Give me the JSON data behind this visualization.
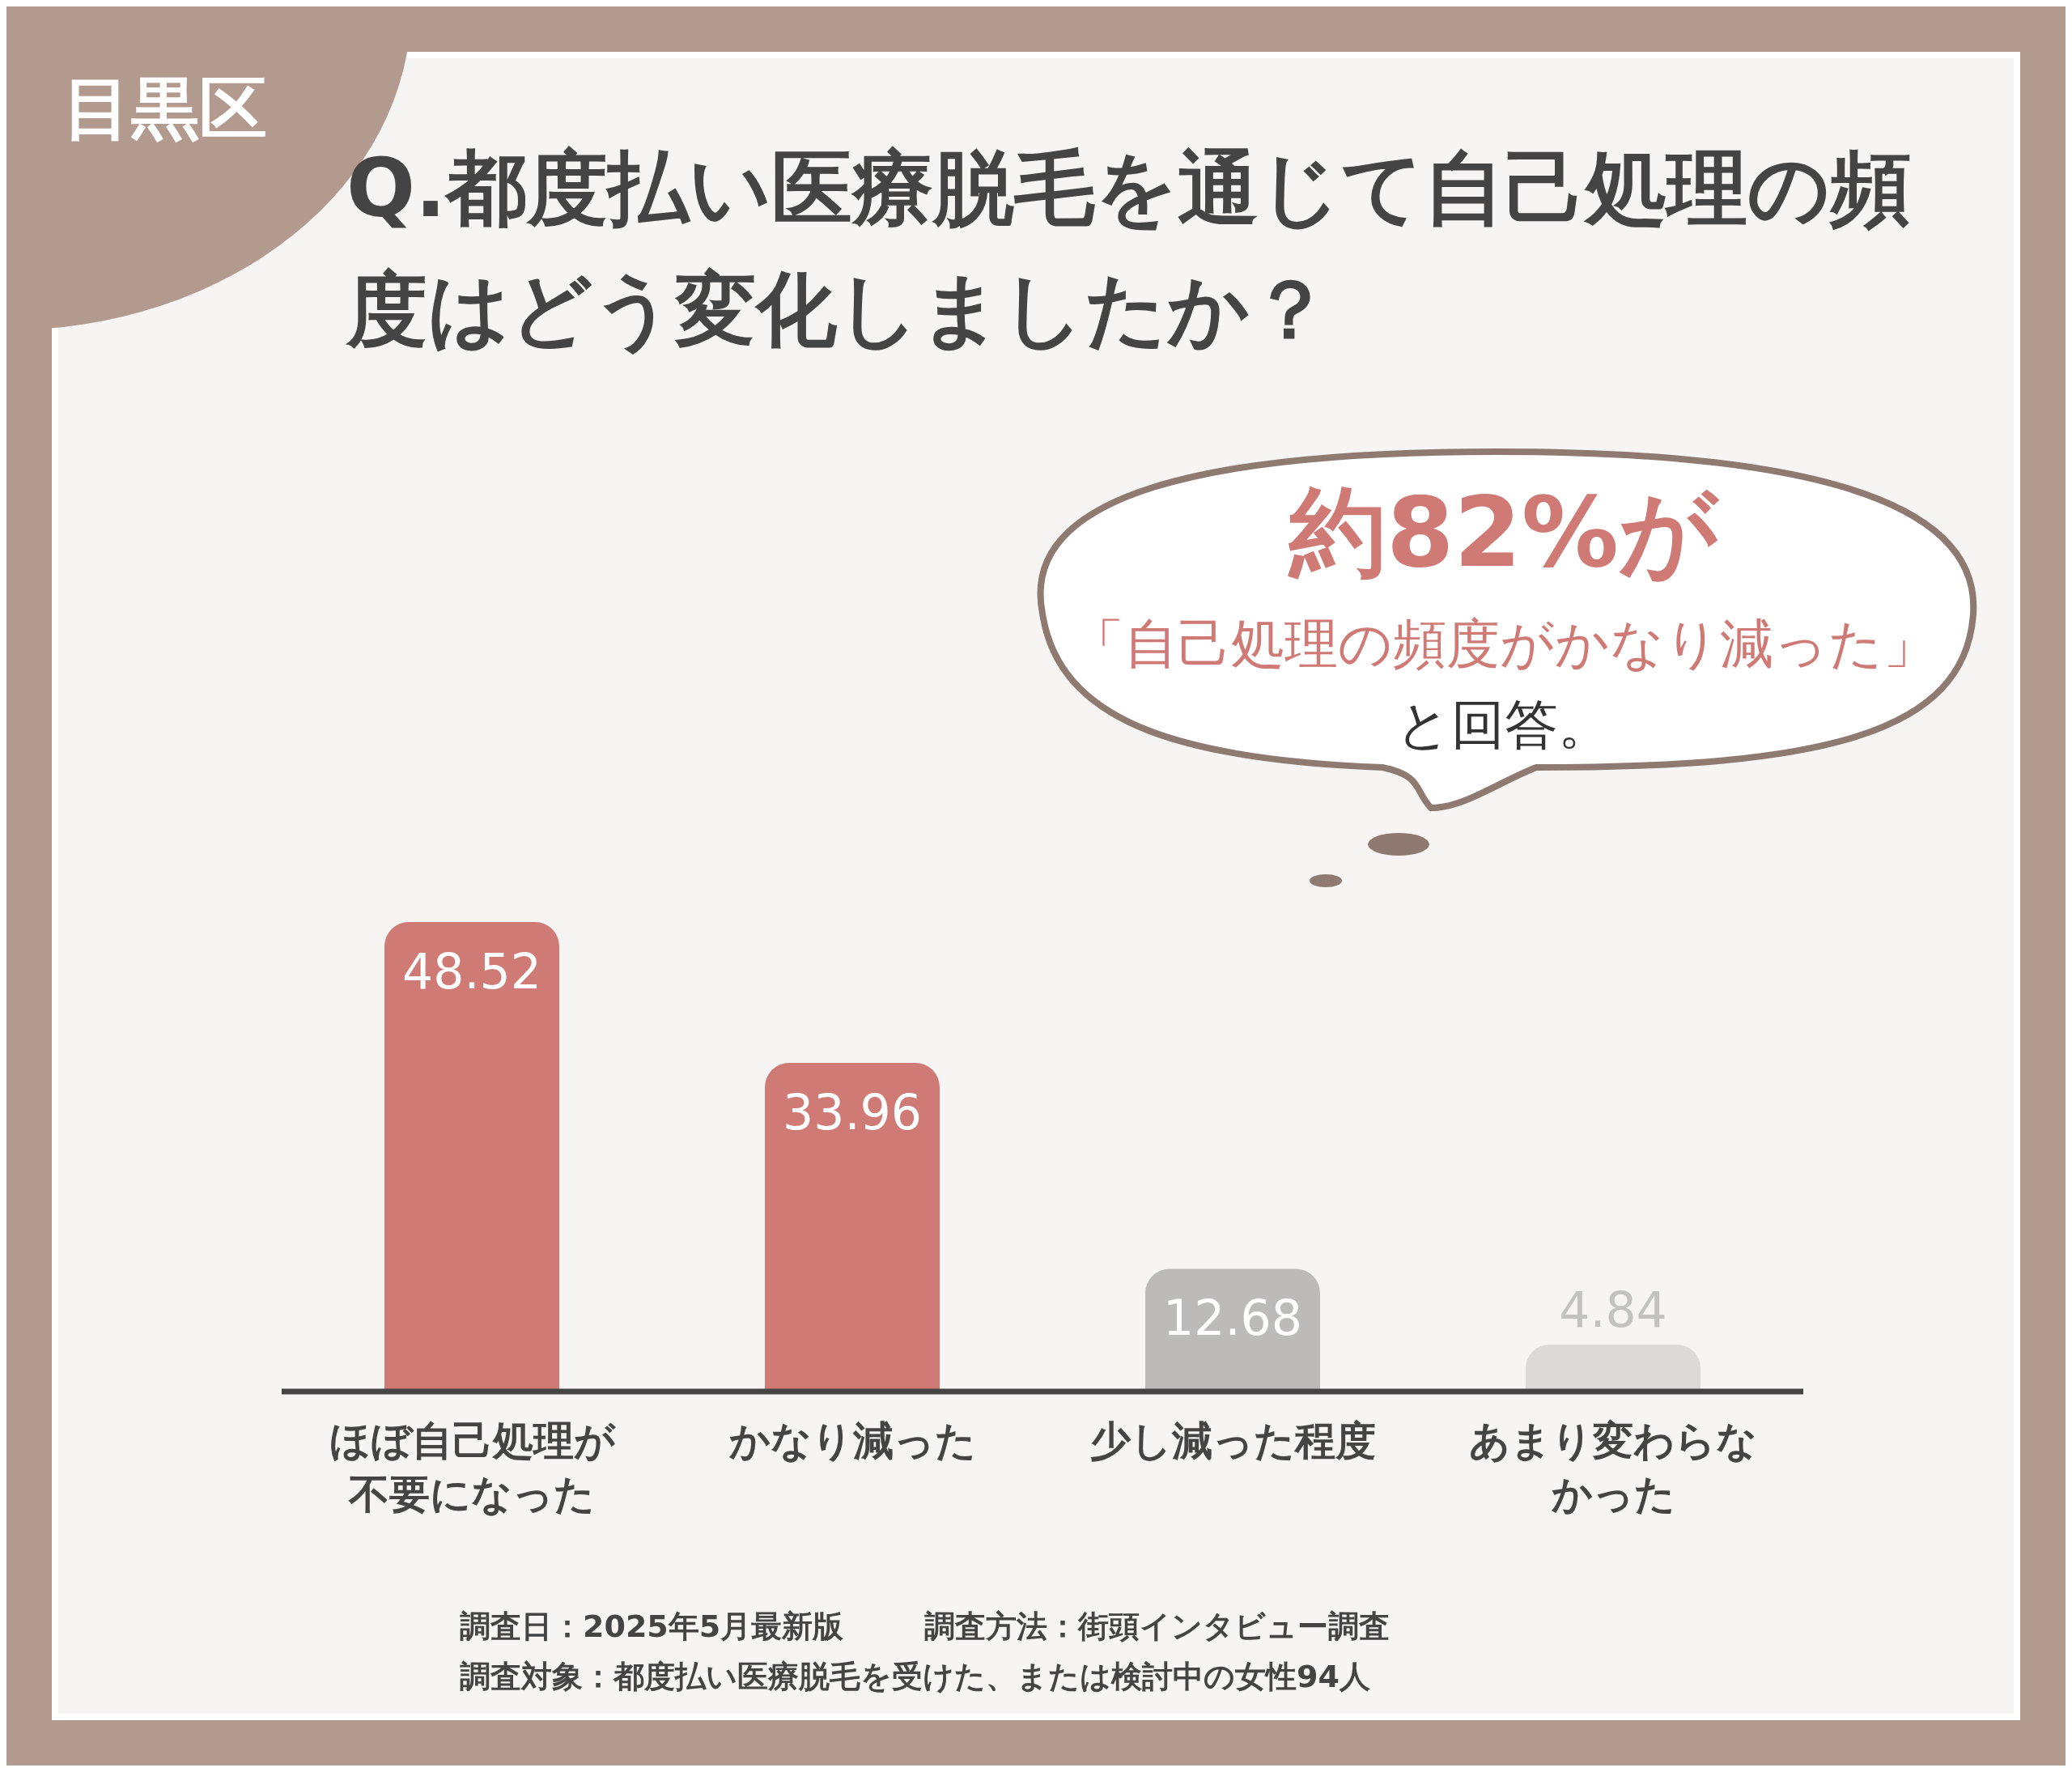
{
  "chart_data": {
    "type": "bar",
    "title": "Q.都度払い医療脱毛を通じて自己処理の頻度はどう変化しましたか？",
    "categories": [
      "ほぼ自己処理が不要になった",
      "かなり減った",
      "少し減った程度",
      "あまり変わらなかった"
    ],
    "values": [
      48.52,
      33.96,
      12.68,
      4.84
    ],
    "colors": [
      "#d07a76",
      "#d07a76",
      "#bdbbb9",
      "#dcdad8"
    ],
    "data_labels": true,
    "annotations": [
      "目黒区",
      "約82%が",
      "「自己処理の頻度がかなり減った」",
      "と回答。",
      "調査日：2025年5月最新版",
      "調査方法：街頭インタビュー調査",
      "調査対象：都度払い医療脱毛を受けた、または検討中の女性94人"
    ]
  }
}
